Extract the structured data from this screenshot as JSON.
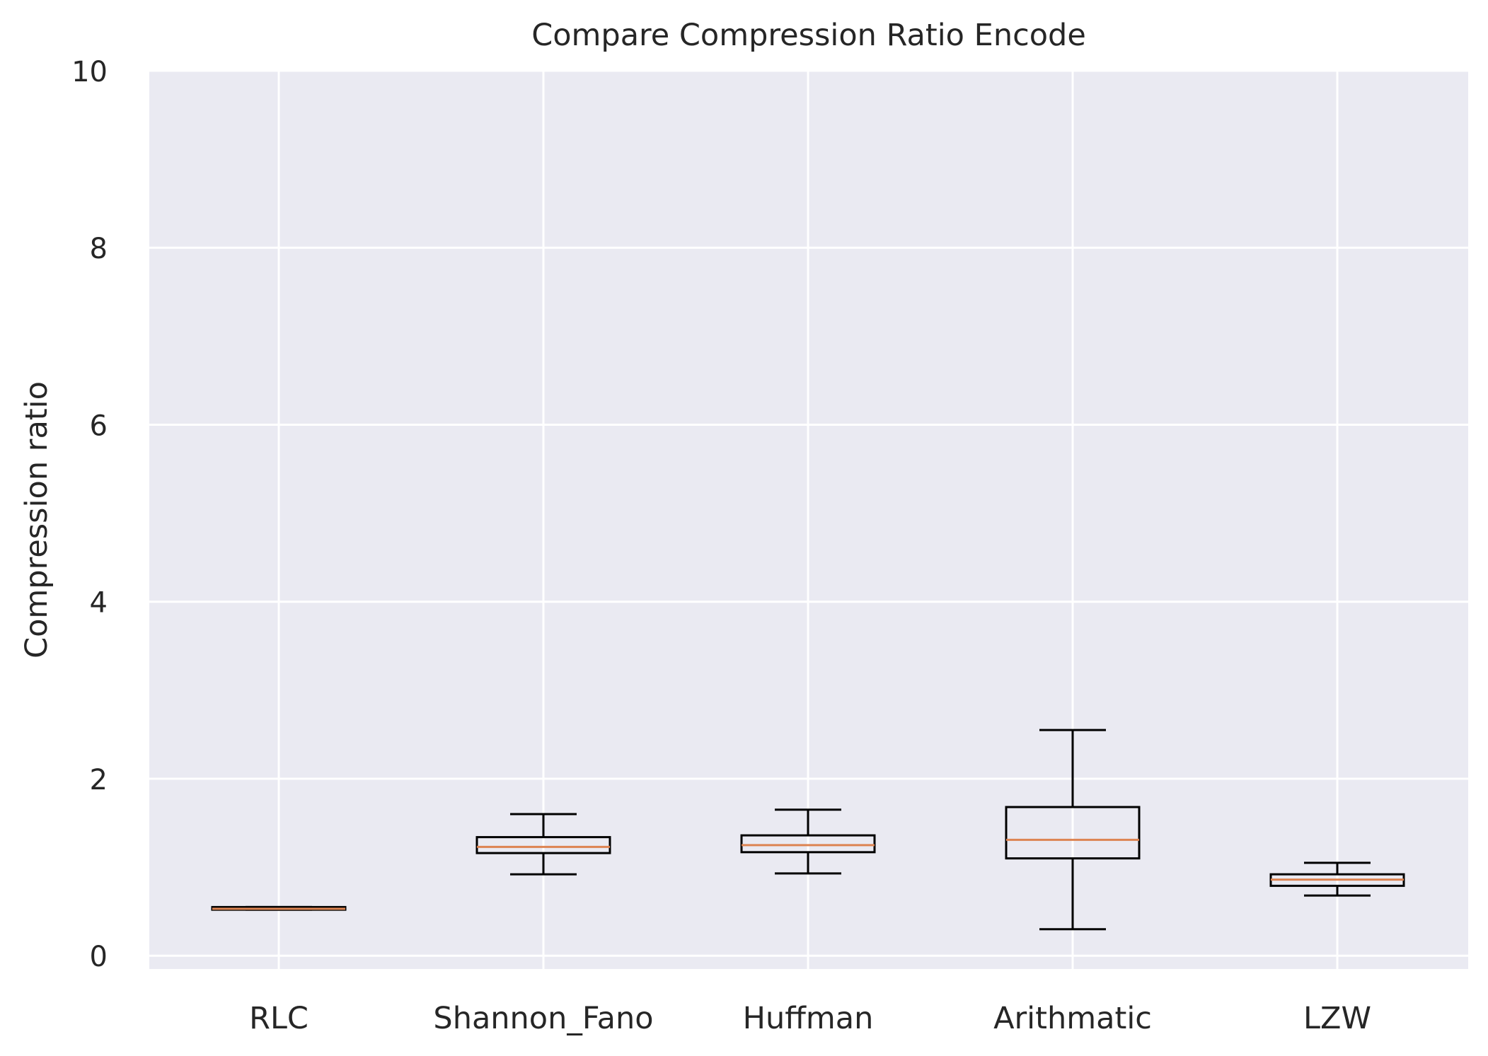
{
  "chart_data": {
    "type": "box",
    "title": "Compare Compression Ratio Encode",
    "xlabel": "",
    "ylabel": "Compression ratio",
    "ylim": [
      -0.15,
      10
    ],
    "yticks": [
      0,
      2,
      4,
      6,
      8,
      10
    ],
    "grid": true,
    "categories": [
      "RLC",
      "Shannon_Fano",
      "Huffman",
      "Arithmatic",
      "LZW"
    ],
    "boxes": [
      {
        "whisker_low": 0.52,
        "q1": 0.52,
        "median": 0.53,
        "q3": 0.55,
        "whisker_high": 0.55
      },
      {
        "whisker_low": 0.92,
        "q1": 1.16,
        "median": 1.23,
        "q3": 1.34,
        "whisker_high": 1.6
      },
      {
        "whisker_low": 0.93,
        "q1": 1.17,
        "median": 1.25,
        "q3": 1.36,
        "whisker_high": 1.65
      },
      {
        "whisker_low": 0.3,
        "q1": 1.1,
        "median": 1.31,
        "q3": 1.68,
        "whisker_high": 2.55
      },
      {
        "whisker_low": 0.68,
        "q1": 0.79,
        "median": 0.86,
        "q3": 0.92,
        "whisker_high": 1.05
      }
    ],
    "colors": {
      "plot_background": "#eaeaf2",
      "grid": "#ffffff",
      "box": "#000000",
      "median": "#dd8452",
      "text": "#262626"
    }
  }
}
